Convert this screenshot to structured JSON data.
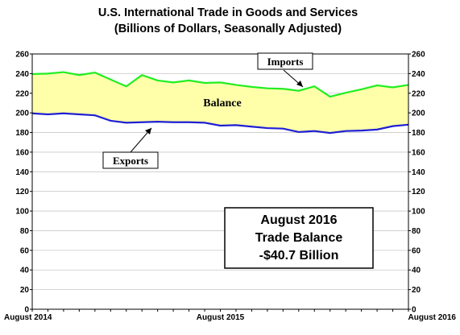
{
  "chart_data": {
    "type": "area",
    "title": "U.S. International Trade in Goods and Services",
    "subtitle": "(Billions of Dollars, Seasonally Adjusted)",
    "x": [
      "2014-08",
      "2014-09",
      "2014-10",
      "2014-11",
      "2014-12",
      "2015-01",
      "2015-02",
      "2015-03",
      "2015-04",
      "2015-05",
      "2015-06",
      "2015-07",
      "2015-08",
      "2015-09",
      "2015-10",
      "2015-11",
      "2015-12",
      "2016-01",
      "2016-02",
      "2016-03",
      "2016-04",
      "2016-05",
      "2016-06",
      "2016-07",
      "2016-08"
    ],
    "x_tick_labels": [
      {
        "index": 0,
        "label": "August 2014"
      },
      {
        "index": 12,
        "label": "August 2015"
      },
      {
        "index": 24,
        "label": "August 2016"
      }
    ],
    "series": [
      {
        "name": "Imports",
        "color": "#22ee22",
        "values": [
          239.5,
          240.0,
          241.5,
          238.5,
          241.0,
          234.0,
          227.0,
          238.5,
          233.0,
          231.0,
          233.0,
          230.5,
          231.0,
          228.5,
          226.5,
          225.0,
          224.5,
          222.5,
          227.0,
          216.5,
          220.5,
          224.0,
          228.0,
          226.0,
          228.5
        ]
      },
      {
        "name": "Exports",
        "color": "#1f1fd6",
        "values": [
          199.5,
          198.5,
          199.5,
          198.5,
          197.5,
          192.0,
          190.0,
          190.5,
          191.0,
          190.5,
          190.5,
          190.0,
          187.0,
          187.5,
          186.0,
          184.5,
          184.0,
          180.5,
          181.5,
          179.5,
          181.5,
          182.0,
          183.0,
          186.5,
          188.0
        ]
      }
    ],
    "fill_color": "#ffffaa",
    "ylim": [
      0,
      260
    ],
    "y_ticks": [
      0,
      20,
      40,
      60,
      80,
      100,
      120,
      140,
      160,
      180,
      200,
      220,
      240,
      260
    ],
    "grid": true,
    "annotations": {
      "imports_label": "Imports",
      "exports_label": "Exports",
      "balance_label": "Balance",
      "box_lines": [
        "August 2016",
        "Trade Balance",
        "-$40.7 Billion"
      ]
    }
  }
}
